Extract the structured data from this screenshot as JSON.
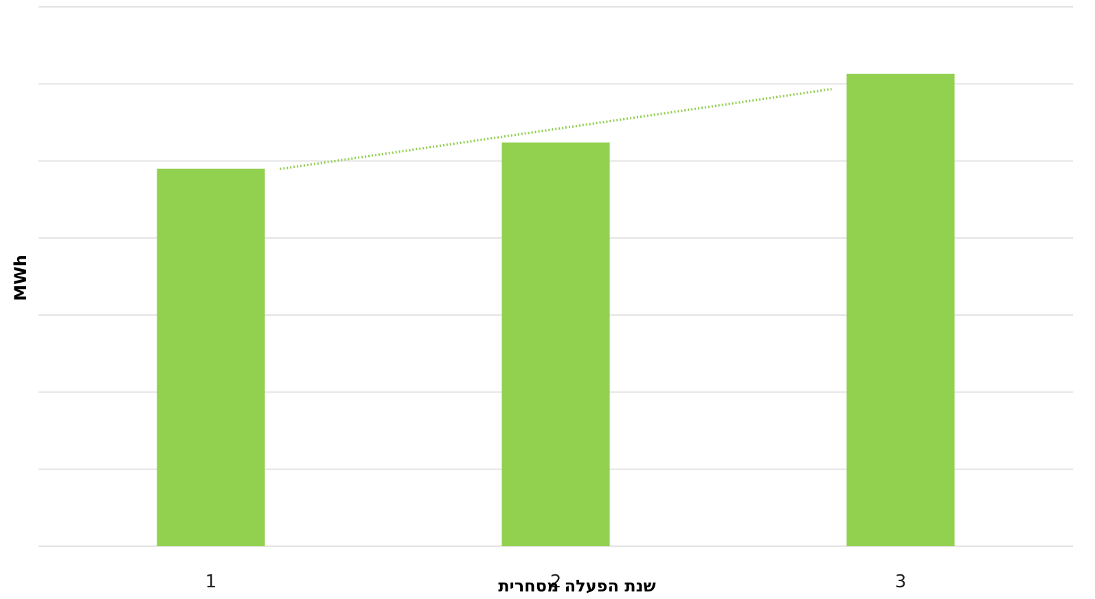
{
  "chart_data": {
    "type": "bar",
    "categories": [
      "1",
      "2",
      "3"
    ],
    "values": [
      4.9,
      5.24,
      6.13
    ],
    "trendline": {
      "type": "linear",
      "style": "dotted",
      "color": "#92d050"
    },
    "title": "",
    "xlabel": "שנת הפעלה מסחרית",
    "ylabel": "MWh",
    "ylim": [
      0,
      7
    ],
    "y_ticks": [
      0,
      1,
      2,
      3,
      4,
      5,
      6,
      7
    ],
    "y_tick_labels_visible": false,
    "grid": true,
    "legend": "none",
    "bar_color": "#92d050",
    "grid_color": "#d9d9d9"
  }
}
